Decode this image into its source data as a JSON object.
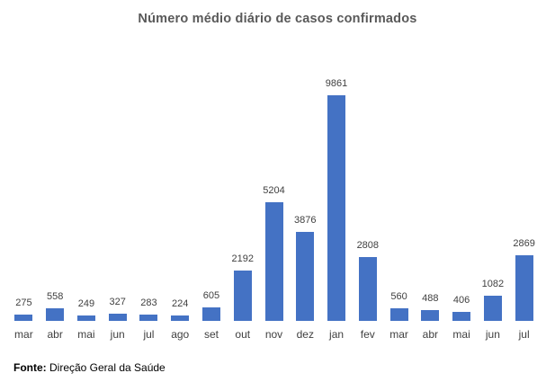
{
  "title": "Número médio diário de casos confirmados",
  "footer": {
    "label": "Fonte:",
    "text": " Direção Geral da Saúde"
  },
  "colors": {
    "bar": "#4472c4",
    "title_text": "#595959",
    "label_text": "#404040",
    "footer_text": "#000000"
  },
  "chart_data": {
    "type": "bar",
    "categories": [
      "mar",
      "abr",
      "mai",
      "jun",
      "jul",
      "ago",
      "set",
      "out",
      "nov",
      "dez",
      "jan",
      "fev",
      "mar",
      "abr",
      "mai",
      "jun",
      "jul"
    ],
    "values": [
      275,
      558,
      249,
      327,
      283,
      224,
      605,
      2192,
      5204,
      3876,
      9861,
      2808,
      560,
      488,
      406,
      1082,
      2869
    ],
    "title": "Número médio diário de casos confirmados",
    "xlabel": "",
    "ylabel": "",
    "ylim": [
      0,
      9861
    ],
    "grid": false,
    "legend": false,
    "data_labels": true,
    "bar_color": "#4472c4"
  }
}
